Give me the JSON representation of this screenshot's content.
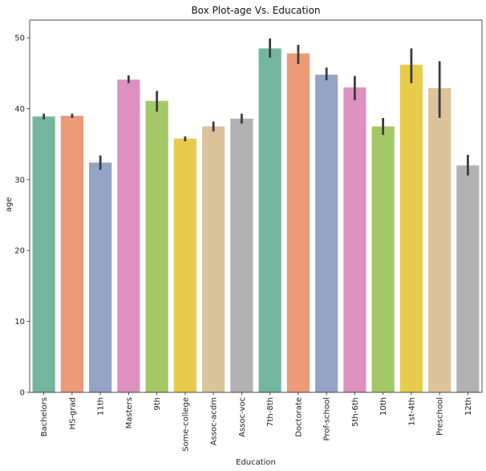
{
  "chart_data": {
    "type": "bar",
    "title": "Box Plot-age Vs. Education",
    "xlabel": "Education",
    "ylabel": "age",
    "ylim": [
      0,
      52.5
    ],
    "yticks": [
      0,
      10,
      20,
      30,
      40,
      50
    ],
    "grid": false,
    "legend": "none",
    "categories": [
      "Bachelors",
      "HS-grad",
      "11th",
      "Masters",
      "9th",
      "Some-college",
      "Assoc-acdm",
      "Assoc-voc",
      "7th-8th",
      "Doctorate",
      "Prof-school",
      "5th-6th",
      "10th",
      "1st-4th",
      "Preschool",
      "12th"
    ],
    "values": [
      38.9,
      39.0,
      32.4,
      44.1,
      41.1,
      35.8,
      37.5,
      38.6,
      48.5,
      47.8,
      44.8,
      43.0,
      37.5,
      46.2,
      42.9,
      32.0
    ],
    "error_low": [
      38.5,
      38.7,
      31.4,
      43.6,
      39.6,
      35.4,
      36.8,
      37.9,
      47.2,
      46.3,
      44.0,
      41.2,
      36.3,
      43.6,
      38.7,
      30.6
    ],
    "error_high": [
      39.3,
      39.3,
      33.4,
      44.7,
      42.5,
      36.1,
      38.2,
      39.3,
      49.9,
      49.0,
      45.8,
      44.6,
      38.7,
      48.5,
      46.7,
      33.5
    ],
    "colors": [
      "#73b6a0",
      "#ec9a77",
      "#95a3c6",
      "#dc91bf",
      "#a4c866",
      "#e6cb4c",
      "#dbc39c",
      "#b2b2b2",
      "#73b6a0",
      "#ec9a77",
      "#95a3c6",
      "#dc91bf",
      "#a4c866",
      "#e6cb4c",
      "#dbc39c",
      "#b2b2b2"
    ],
    "errorbar_color": "#3c3c3c"
  }
}
